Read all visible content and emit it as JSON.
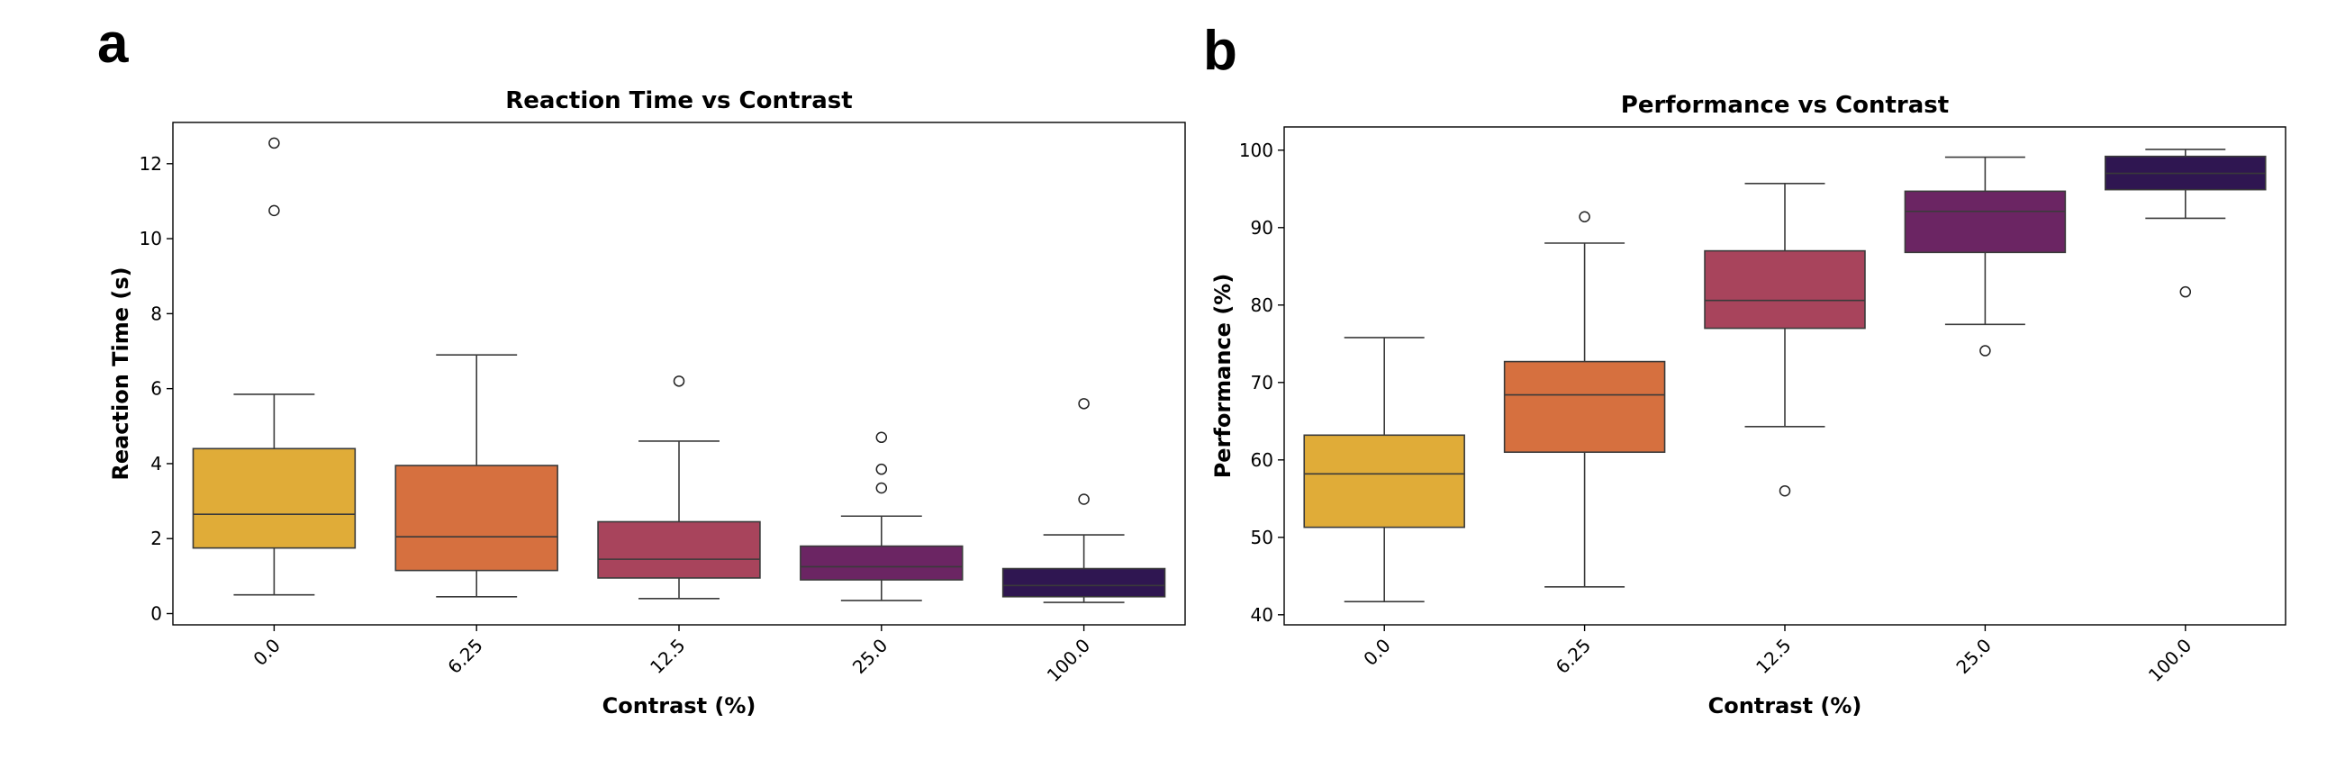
{
  "panels": {
    "a": {
      "letter": "a"
    },
    "b": {
      "letter": "b"
    }
  },
  "chart_data": [
    {
      "type": "box",
      "title": "Reaction Time vs Contrast",
      "xlabel": "Contrast (%)",
      "ylabel": "Reaction Time (s)",
      "categories": [
        "0.0",
        "6.25",
        "12.5",
        "25.0",
        "100.0"
      ],
      "ylim": [
        -0.3,
        13.1
      ],
      "yticks": [
        0,
        2,
        4,
        6,
        8,
        10,
        12
      ],
      "grid": false,
      "colors": [
        "#e0ac38",
        "#d6703f",
        "#a8445c",
        "#6b2563",
        "#2f1651"
      ],
      "boxes": [
        {
          "category": "0.0",
          "whisker_low": 0.5,
          "q1": 1.75,
          "median": 2.65,
          "q3": 4.4,
          "whisker_high": 5.85,
          "outliers": [
            10.75,
            12.55
          ]
        },
        {
          "category": "6.25",
          "whisker_low": 0.45,
          "q1": 1.15,
          "median": 2.05,
          "q3": 3.95,
          "whisker_high": 6.9,
          "outliers": []
        },
        {
          "category": "12.5",
          "whisker_low": 0.4,
          "q1": 0.95,
          "median": 1.45,
          "q3": 2.45,
          "whisker_high": 4.6,
          "outliers": [
            6.2
          ]
        },
        {
          "category": "25.0",
          "whisker_low": 0.35,
          "q1": 0.9,
          "median": 1.25,
          "q3": 1.8,
          "whisker_high": 2.6,
          "outliers": [
            3.35,
            3.85,
            4.7
          ]
        },
        {
          "category": "100.0",
          "whisker_low": 0.3,
          "q1": 0.45,
          "median": 0.75,
          "q3": 1.2,
          "whisker_high": 2.1,
          "outliers": [
            3.05,
            5.6
          ]
        }
      ]
    },
    {
      "type": "box",
      "title": "Performance vs Contrast",
      "xlabel": "Contrast (%)",
      "ylabel": "Performance (%)",
      "categories": [
        "0.0",
        "6.25",
        "12.5",
        "25.0",
        "100.0"
      ],
      "ylim": [
        38.7,
        103.0
      ],
      "yticks": [
        40,
        50,
        60,
        70,
        80,
        90,
        100
      ],
      "grid": false,
      "colors": [
        "#e0ac38",
        "#d6703f",
        "#a8445c",
        "#6b2563",
        "#2f1651"
      ],
      "boxes": [
        {
          "category": "0.0",
          "whisker_low": 41.7,
          "q1": 51.3,
          "median": 58.2,
          "q3": 63.2,
          "whisker_high": 75.8,
          "outliers": []
        },
        {
          "category": "6.25",
          "whisker_low": 43.6,
          "q1": 61.0,
          "median": 68.4,
          "q3": 72.7,
          "whisker_high": 88.0,
          "outliers": [
            91.4
          ]
        },
        {
          "category": "12.5",
          "whisker_low": 64.3,
          "q1": 77.0,
          "median": 80.6,
          "q3": 87.0,
          "whisker_high": 95.7,
          "outliers": [
            56.0
          ]
        },
        {
          "category": "25.0",
          "whisker_low": 77.5,
          "q1": 86.8,
          "median": 92.1,
          "q3": 94.7,
          "whisker_high": 99.1,
          "outliers": [
            74.1
          ]
        },
        {
          "category": "100.0",
          "whisker_low": 91.2,
          "q1": 94.9,
          "median": 97.0,
          "q3": 99.2,
          "whisker_high": 100.1,
          "outliers": [
            81.7
          ]
        }
      ]
    }
  ]
}
